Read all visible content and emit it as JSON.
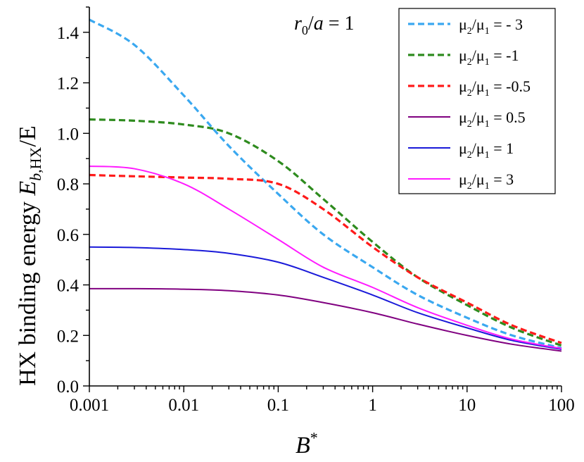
{
  "chart_data": {
    "type": "line",
    "xscale": "log",
    "xlim": [
      0.001,
      100
    ],
    "ylim": [
      0.0,
      1.5
    ],
    "xticks": [
      "0.001",
      "0.01",
      "0.1",
      "1",
      "10",
      "100"
    ],
    "yticks": [
      "0.0",
      "0.2",
      "0.4",
      "0.6",
      "0.8",
      "1.0",
      "1.2",
      "1.4"
    ],
    "xlabel": {
      "main": "B",
      "sup": "*"
    },
    "ylabel": {
      "prefix": "HX binding energy ",
      "E": "E",
      "sub": "b,",
      "subHX": "HX",
      "suffix": "/E"
    },
    "annotation": {
      "r": "r",
      "sub": "0",
      "rest": "/",
      "a": "a",
      "eq": " = 1"
    },
    "legend_position": "top-right",
    "x": [
      0.001,
      0.003,
      0.01,
      0.03,
      0.1,
      0.3,
      1,
      3,
      10,
      30,
      100
    ],
    "series": [
      {
        "name": "μ2/μ1 = - 3",
        "label": {
          "base": "μ",
          "s1": "2",
          "mid": "/μ",
          "s2": "1",
          "tail": " = - 3"
        },
        "color": "#3aa8f0",
        "dash": true,
        "values": [
          1.45,
          1.35,
          1.15,
          0.95,
          0.76,
          0.6,
          0.47,
          0.36,
          0.27,
          0.2,
          0.15
        ]
      },
      {
        "name": "μ2/μ1 = -1",
        "label": {
          "base": "μ",
          "s1": "2",
          "mid": "/μ",
          "s2": "1",
          "tail": " = -1"
        },
        "color": "#2e8b1e",
        "dash": true,
        "values": [
          1.055,
          1.05,
          1.035,
          1.0,
          0.89,
          0.74,
          0.57,
          0.43,
          0.32,
          0.23,
          0.16
        ]
      },
      {
        "name": "μ2/μ1 = -0.5",
        "label": {
          "base": "μ",
          "s1": "2",
          "mid": "/μ",
          "s2": "1",
          "tail": " = -0.5"
        },
        "color": "#ff1a1a",
        "dash": true,
        "values": [
          0.835,
          0.83,
          0.825,
          0.82,
          0.8,
          0.7,
          0.55,
          0.43,
          0.33,
          0.24,
          0.17
        ]
      },
      {
        "name": "μ2/μ1 = 0.5",
        "label": {
          "base": "μ",
          "s1": "2",
          "mid": "/μ",
          "s2": "1",
          "tail": " = 0.5"
        },
        "color": "#800080",
        "dash": false,
        "values": [
          0.385,
          0.385,
          0.383,
          0.377,
          0.36,
          0.33,
          0.29,
          0.245,
          0.2,
          0.165,
          0.138
        ]
      },
      {
        "name": "μ2/μ1 = 1",
        "label": {
          "base": "μ",
          "s1": "2",
          "mid": "/μ",
          "s2": "1",
          "tail": " = 1"
        },
        "color": "#1a1ad9",
        "dash": false,
        "values": [
          0.55,
          0.548,
          0.54,
          0.525,
          0.49,
          0.43,
          0.36,
          0.29,
          0.23,
          0.18,
          0.145
        ]
      },
      {
        "name": "μ2/μ1 = 3",
        "label": {
          "base": "μ",
          "s1": "2",
          "mid": "/μ",
          "s2": "1",
          "tail": " = 3"
        },
        "color": "#ff1aff",
        "dash": false,
        "values": [
          0.87,
          0.86,
          0.8,
          0.7,
          0.58,
          0.47,
          0.39,
          0.31,
          0.24,
          0.185,
          0.148
        ]
      }
    ]
  }
}
